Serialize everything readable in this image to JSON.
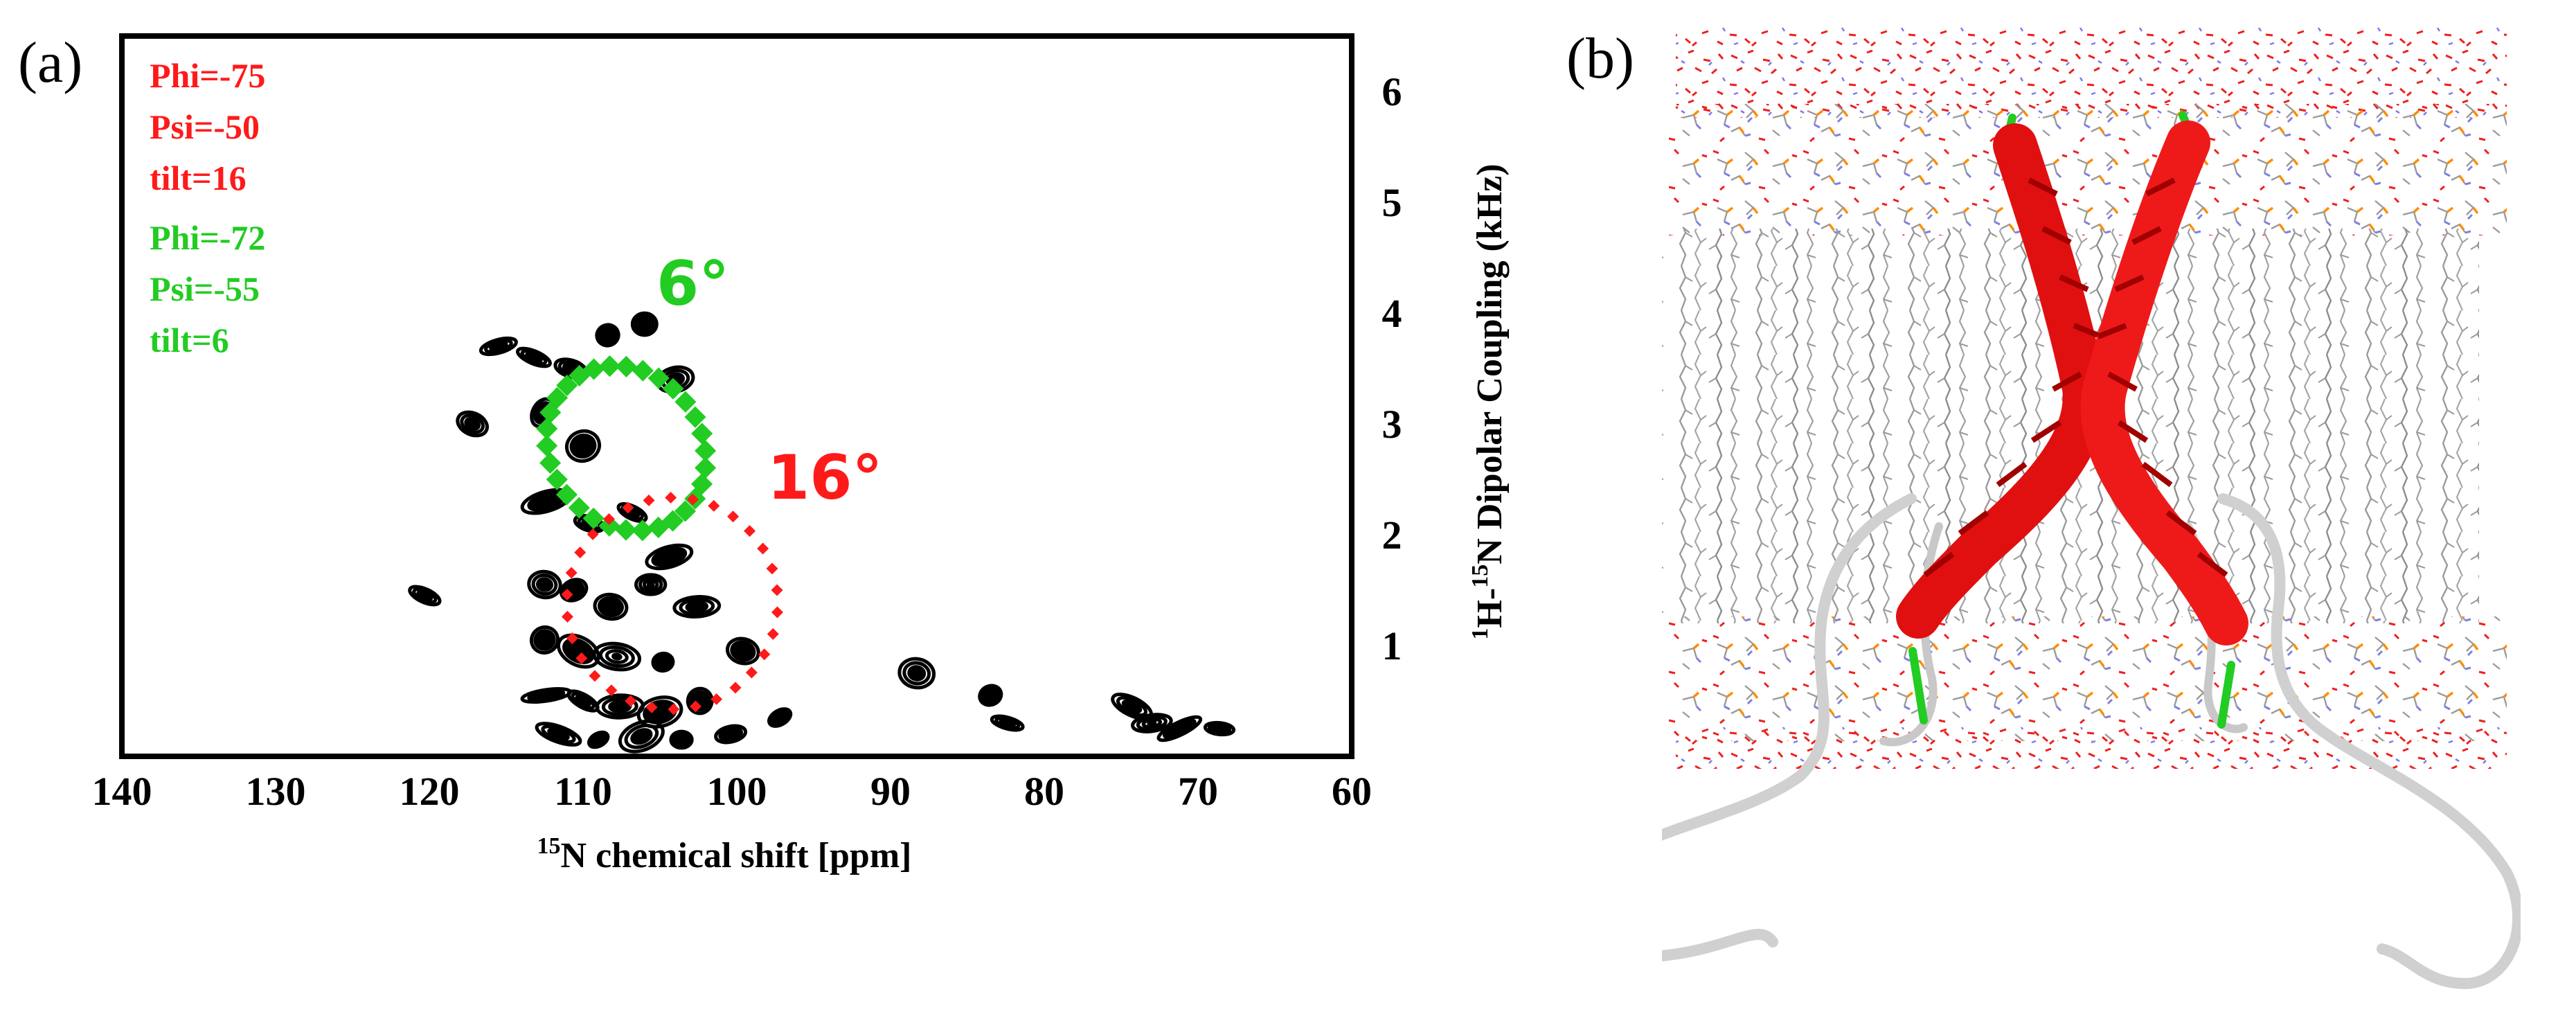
{
  "panels": {
    "a_label": "(a)",
    "b_label": "(b)"
  },
  "legend": {
    "red": [
      "Phi=-75",
      "Psi=-50",
      "tilt=16"
    ],
    "green": [
      "Phi=-72",
      "Psi=-55",
      "tilt=6"
    ]
  },
  "annotations": {
    "green_angle": "6°",
    "red_angle": "16°"
  },
  "colors": {
    "red": "#ff1a1a",
    "green": "#22cc22",
    "contour": "#000000"
  },
  "chart_data": {
    "type": "scatter",
    "subtype": "2D PISEMA contour spectrum",
    "title": "",
    "xlabel": {
      "sup": "15",
      "text": "N chemical shift [ppm]"
    },
    "ylabel": {
      "sup1": "1",
      "part1": "H-",
      "sup2": "15",
      "part2": "N Dipolar Coupling (kHz)"
    },
    "xlim": [
      140,
      60
    ],
    "ylim": [
      0,
      6.5
    ],
    "xticks": [
      140,
      130,
      120,
      110,
      100,
      90,
      80,
      70,
      60
    ],
    "yticks": [
      1,
      2,
      3,
      4,
      5,
      6
    ],
    "y_axis_side": "right",
    "series": [
      {
        "name": "tilt=6",
        "color": "#22cc22",
        "shape": "ellipse",
        "center": [
          107.2,
          2.78
        ],
        "radius_x": 4.9,
        "radius_y": 0.78,
        "rotation_deg": 38
      },
      {
        "name": "tilt=16",
        "color": "#ff1a1a",
        "shape": "ellipse",
        "center": [
          104.2,
          1.38
        ],
        "radius_x": 6.9,
        "radius_y": 0.95,
        "rotation_deg": 55
      }
    ],
    "contour_peaks": [
      [
        115.5,
        3.7
      ],
      [
        113.2,
        3.6
      ],
      [
        110.8,
        3.5
      ],
      [
        108.4,
        3.8
      ],
      [
        106.0,
        3.9
      ],
      [
        112.6,
        3.1
      ],
      [
        110.0,
        2.8
      ],
      [
        104.0,
        3.4
      ],
      [
        112.4,
        2.3
      ],
      [
        109.6,
        2.1
      ],
      [
        106.8,
        2.2
      ],
      [
        104.4,
        1.8
      ],
      [
        112.5,
        1.55
      ],
      [
        110.6,
        1.5
      ],
      [
        108.2,
        1.35
      ],
      [
        105.6,
        1.55
      ],
      [
        102.6,
        1.35
      ],
      [
        112.5,
        1.05
      ],
      [
        110.3,
        0.95
      ],
      [
        107.8,
        0.9
      ],
      [
        104.8,
        0.85
      ],
      [
        99.6,
        0.95
      ],
      [
        112.4,
        0.55
      ],
      [
        110.0,
        0.5
      ],
      [
        107.6,
        0.45
      ],
      [
        105.0,
        0.4
      ],
      [
        102.4,
        0.5
      ],
      [
        111.6,
        0.2
      ],
      [
        109.0,
        0.15
      ],
      [
        106.2,
        0.18
      ],
      [
        103.6,
        0.15
      ],
      [
        100.4,
        0.2
      ],
      [
        97.2,
        0.35
      ],
      [
        83.5,
        0.55
      ],
      [
        82.4,
        0.3
      ],
      [
        74.3,
        0.45
      ],
      [
        73.0,
        0.3
      ],
      [
        71.2,
        0.25
      ],
      [
        68.6,
        0.25
      ],
      [
        117.2,
        3.0
      ],
      [
        120.3,
        1.45
      ],
      [
        88.3,
        0.75
      ]
    ]
  }
}
